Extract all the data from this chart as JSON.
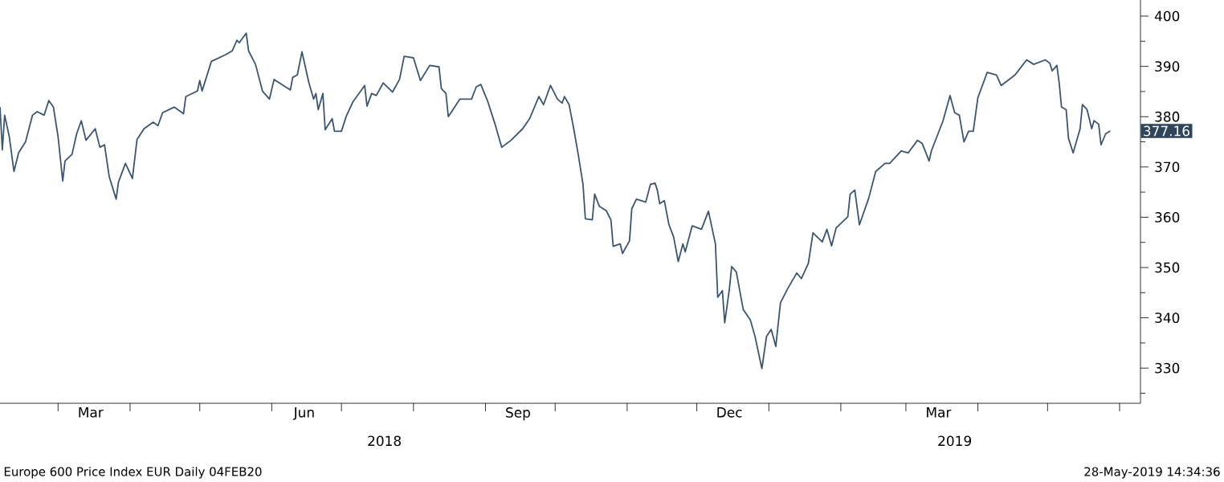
{
  "chart_data": {
    "type": "line",
    "color": "#3a5673",
    "marker": "none",
    "xlim": [
      "2018-02-04",
      "2019-06-10"
    ],
    "ylim": [
      323,
      403.2
    ],
    "yticks": [
      330,
      340,
      350,
      360,
      370,
      380,
      390,
      400,
      {
        "value": 325,
        "label": null
      },
      {
        "value": 335,
        "label": null
      },
      {
        "value": 345,
        "label": null
      },
      {
        "value": 355,
        "label": null
      },
      {
        "value": 365,
        "label": null
      },
      {
        "value": 375,
        "label": null
      },
      {
        "value": 385,
        "label": null
      },
      {
        "value": 395,
        "label": null
      }
    ],
    "xticks": [
      {
        "value": "2018-03-01",
        "label": null
      },
      {
        "value": "2018-04-01",
        "label": null
      },
      {
        "value": "2018-05-01",
        "label": null
      },
      {
        "value": "2018-06-01",
        "label": null
      },
      {
        "value": "2018-07-01",
        "label": null
      },
      {
        "value": "2018-08-01",
        "label": null
      },
      {
        "value": "2018-09-01",
        "label": null
      },
      {
        "value": "2018-10-01",
        "label": null
      },
      {
        "value": "2018-11-01",
        "label": null
      },
      {
        "value": "2018-12-01",
        "label": null
      },
      {
        "value": "2019-01-01",
        "label": null
      },
      {
        "value": "2019-02-01",
        "label": null
      },
      {
        "value": "2019-03-01",
        "label": null
      },
      {
        "value": "2019-04-01",
        "label": null
      },
      {
        "value": "2019-05-01",
        "label": null
      },
      {
        "value": "2019-06-01",
        "label": null
      },
      {
        "value": "2018-03-15",
        "label": "Mar"
      },
      {
        "value": "2018-06-15",
        "label": "Jun"
      },
      {
        "value": "2018-09-15",
        "label": "Sep"
      },
      {
        "value": "2018-12-15",
        "label": "Dec"
      },
      {
        "value": "2019-03-15",
        "label": "Mar"
      }
    ],
    "x": [
      "2018-02-04",
      "2018-02-05",
      "2018-02-06",
      "2018-02-08",
      "2018-02-10",
      "2018-02-12",
      "2018-02-15",
      "2018-02-18",
      "2018-02-20",
      "2018-02-23",
      "2018-02-25",
      "2018-02-27",
      "2018-03-01",
      "2018-03-03",
      "2018-03-04",
      "2018-03-07",
      "2018-03-09",
      "2018-03-11",
      "2018-03-13",
      "2018-03-17",
      "2018-03-19",
      "2018-03-21",
      "2018-03-23",
      "2018-03-26",
      "2018-03-27",
      "2018-03-30",
      "2018-04-02",
      "2018-04-04",
      "2018-04-07",
      "2018-04-11",
      "2018-04-13",
      "2018-04-15",
      "2018-04-20",
      "2018-04-24",
      "2018-04-25",
      "2018-04-30",
      "2018-05-01",
      "2018-05-02",
      "2018-05-06",
      "2018-05-12",
      "2018-05-15",
      "2018-05-17",
      "2018-05-18",
      "2018-05-21",
      "2018-05-22",
      "2018-05-25",
      "2018-05-28",
      "2018-05-31",
      "2018-06-02",
      "2018-06-09",
      "2018-06-10",
      "2018-06-12",
      "2018-06-14",
      "2018-06-17",
      "2018-06-19",
      "2018-06-20",
      "2018-06-21",
      "2018-06-23",
      "2018-06-24",
      "2018-06-27",
      "2018-06-28",
      "2018-07-01",
      "2018-07-03",
      "2018-07-06",
      "2018-07-11",
      "2018-07-12",
      "2018-07-14",
      "2018-07-16",
      "2018-07-19",
      "2018-07-23",
      "2018-07-26",
      "2018-07-28",
      "2018-08-01",
      "2018-08-04",
      "2018-08-08",
      "2018-08-12",
      "2018-08-13",
      "2018-08-15",
      "2018-08-16",
      "2018-08-18",
      "2018-08-21",
      "2018-08-26",
      "2018-08-28",
      "2018-08-30",
      "2018-09-02",
      "2018-09-05",
      "2018-09-08",
      "2018-09-12",
      "2018-09-17",
      "2018-09-20",
      "2018-09-24",
      "2018-09-26",
      "2018-09-29",
      "2018-10-02",
      "2018-10-04",
      "2018-10-05",
      "2018-10-07",
      "2018-10-09",
      "2018-10-11",
      "2018-10-13",
      "2018-10-14",
      "2018-10-17",
      "2018-10-18",
      "2018-10-20",
      "2018-10-23",
      "2018-10-25",
      "2018-10-26",
      "2018-10-29",
      "2018-10-30",
      "2018-11-02",
      "2018-11-03",
      "2018-11-05",
      "2018-11-09",
      "2018-11-11",
      "2018-11-13",
      "2018-11-14",
      "2018-11-15",
      "2018-11-17",
      "2018-11-19",
      "2018-11-21",
      "2018-11-23",
      "2018-11-25",
      "2018-11-26",
      "2018-11-29",
      "2018-12-03",
      "2018-12-06",
      "2018-12-09",
      "2018-12-10",
      "2018-12-12",
      "2018-12-13",
      "2018-12-15",
      "2018-12-16",
      "2018-12-18",
      "2018-12-21",
      "2018-12-24",
      "2018-12-26",
      "2018-12-29",
      "2018-12-31",
      "2019-01-02",
      "2019-01-04",
      "2019-01-06",
      "2019-01-09",
      "2019-01-13",
      "2019-01-15",
      "2019-01-18",
      "2019-01-20",
      "2019-01-24",
      "2019-01-26",
      "2019-01-28",
      "2019-01-30",
      "2019-02-04",
      "2019-02-05",
      "2019-02-07",
      "2019-02-09",
      "2019-02-13",
      "2019-02-16",
      "2019-02-20",
      "2019-02-22",
      "2019-02-27",
      "2019-03-02",
      "2019-03-06",
      "2019-03-08",
      "2019-03-11",
      "2019-03-12",
      "2019-03-17",
      "2019-03-20",
      "2019-03-22",
      "2019-03-24",
      "2019-03-26",
      "2019-03-28",
      "2019-03-30",
      "2019-04-01",
      "2019-04-05",
      "2019-04-09",
      "2019-04-11",
      "2019-04-17",
      "2019-04-22",
      "2019-04-25",
      "2019-04-30",
      "2019-05-02",
      "2019-05-03",
      "2019-05-05",
      "2019-05-06",
      "2019-05-07",
      "2019-05-09",
      "2019-05-10",
      "2019-05-12",
      "2019-05-15",
      "2019-05-16",
      "2019-05-18",
      "2019-05-20",
      "2019-05-21",
      "2019-05-23",
      "2019-05-24",
      "2019-05-26",
      "2019-05-28"
    ],
    "values": [
      381.9,
      373.4,
      380.3,
      376.0,
      369.1,
      372.8,
      375.0,
      380.3,
      381.0,
      380.3,
      383.2,
      381.9,
      376.0,
      367.2,
      371.2,
      372.5,
      376.6,
      379.2,
      375.3,
      377.6,
      373.9,
      374.4,
      368.1,
      363.6,
      367.0,
      370.7,
      367.7,
      375.5,
      377.6,
      378.9,
      378.2,
      380.8,
      381.9,
      380.6,
      384.0,
      385.1,
      387.2,
      385.1,
      391.0,
      392.3,
      393.1,
      395.2,
      394.7,
      396.6,
      393.1,
      390.4,
      385.1,
      383.5,
      387.4,
      385.3,
      387.8,
      388.3,
      392.9,
      386.7,
      383.5,
      384.6,
      381.4,
      384.6,
      377.4,
      379.6,
      377.1,
      377.1,
      380.0,
      383.0,
      386.2,
      382.1,
      384.6,
      384.2,
      386.7,
      384.9,
      387.4,
      392.0,
      391.7,
      387.2,
      390.2,
      389.9,
      385.6,
      384.6,
      380.0,
      381.4,
      383.5,
      383.5,
      385.9,
      386.4,
      383.0,
      378.7,
      373.9,
      375.3,
      377.6,
      379.6,
      384.0,
      382.4,
      386.2,
      383.5,
      382.7,
      384.0,
      382.4,
      377.6,
      372.3,
      366.5,
      359.7,
      359.5,
      364.6,
      362.2,
      361.3,
      359.5,
      354.2,
      354.7,
      352.8,
      355.3,
      361.7,
      363.6,
      363.0,
      366.5,
      366.8,
      365.4,
      362.7,
      363.3,
      358.5,
      356.1,
      351.2,
      354.7,
      353.1,
      358.3,
      357.6,
      361.2,
      354.7,
      344.1,
      345.4,
      339.0,
      345.7,
      350.2,
      349.1,
      341.6,
      339.6,
      336.4,
      329.9,
      336.3,
      337.7,
      334.3,
      343.0,
      345.7,
      348.9,
      347.8,
      350.8,
      356.9,
      355.1,
      357.6,
      354.3,
      357.9,
      360.1,
      364.6,
      365.4,
      358.5,
      363.8,
      369.1,
      370.7,
      370.7,
      373.2,
      372.8,
      375.3,
      374.7,
      371.2,
      373.2,
      379.2,
      384.2,
      380.8,
      380.3,
      375.0,
      377.1,
      377.1,
      383.8,
      388.8,
      388.3,
      386.2,
      388.3,
      391.3,
      390.4,
      391.3,
      390.6,
      389.1,
      390.2,
      386.7,
      381.9,
      381.4,
      375.7,
      372.8,
      377.6,
      382.4,
      381.4,
      377.6,
      379.2,
      378.5,
      374.4,
      376.6,
      377.16
    ],
    "annotations": [
      {
        "text": "377.16",
        "x": "2019-05-28",
        "y": 377.16
      },
      "2018",
      "2019",
      "Europe 600 Price Index EUR   Daily 04FEB20",
      "28-May-2019 14:34:36"
    ]
  }
}
